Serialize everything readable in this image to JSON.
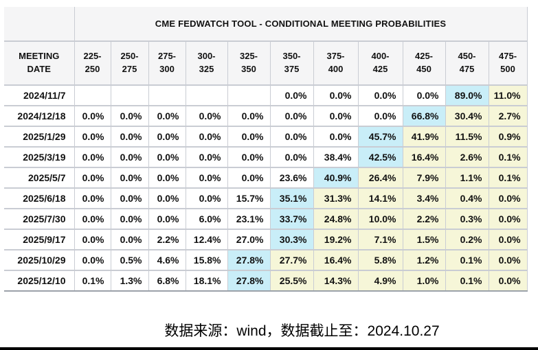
{
  "title": "CME FEDWATCH TOOL - CONDITIONAL MEETING PROBABILITIES",
  "footer": {
    "source_note": "数据来源：wind，数据截止至：2024.10.27"
  },
  "colors": {
    "highlight_blue": "#c9eef8",
    "highlight_yellow": "#f6f6d8",
    "grid_line": "#c9ccd3",
    "header_bg": "#f5f5f6",
    "bottom_bar": "#000000",
    "text": "#111111"
  },
  "chart_data": {
    "type": "table",
    "title": "CME FEDWATCH TOOL - CONDITIONAL MEETING PROBABILITIES",
    "columns": [
      "MEETING DATE",
      "225-250",
      "250-275",
      "275-300",
      "300-325",
      "325-350",
      "350-375",
      "375-400",
      "400-425",
      "425-450",
      "450-475",
      "475-500"
    ],
    "col_headers": [
      {
        "line1": "MEETING",
        "line2": "DATE"
      },
      {
        "line1": "225-",
        "line2": "250"
      },
      {
        "line1": "250-",
        "line2": "275"
      },
      {
        "line1": "275-",
        "line2": "300"
      },
      {
        "line1": "300-",
        "line2": "325"
      },
      {
        "line1": "325-",
        "line2": "350"
      },
      {
        "line1": "350-",
        "line2": "375"
      },
      {
        "line1": "375-",
        "line2": "400"
      },
      {
        "line1": "400-",
        "line2": "425"
      },
      {
        "line1": "425-",
        "line2": "450"
      },
      {
        "line1": "450-",
        "line2": "475"
      },
      {
        "line1": "475-",
        "line2": "500"
      }
    ],
    "rows": [
      {
        "date": "2024/11/7",
        "values": [
          "",
          "",
          "",
          "",
          "",
          "0.0%",
          "0.0%",
          "0.0%",
          "0.0%",
          "89.0%",
          "11.0%"
        ],
        "max_col_index": 9
      },
      {
        "date": "2024/12/18",
        "values": [
          "0.0%",
          "0.0%",
          "0.0%",
          "0.0%",
          "0.0%",
          "0.0%",
          "0.0%",
          "0.0%",
          "66.8%",
          "30.4%",
          "2.7%"
        ],
        "max_col_index": 8
      },
      {
        "date": "2025/1/29",
        "values": [
          "0.0%",
          "0.0%",
          "0.0%",
          "0.0%",
          "0.0%",
          "0.0%",
          "0.0%",
          "45.7%",
          "41.9%",
          "11.5%",
          "0.9%"
        ],
        "max_col_index": 7
      },
      {
        "date": "2025/3/19",
        "values": [
          "0.0%",
          "0.0%",
          "0.0%",
          "0.0%",
          "0.0%",
          "0.0%",
          "38.4%",
          "42.5%",
          "16.4%",
          "2.6%",
          "0.1%"
        ],
        "max_col_index": 7
      },
      {
        "date": "2025/5/7",
        "values": [
          "0.0%",
          "0.0%",
          "0.0%",
          "0.0%",
          "0.0%",
          "23.6%",
          "40.9%",
          "26.4%",
          "7.9%",
          "1.1%",
          "0.1%"
        ],
        "max_col_index": 6
      },
      {
        "date": "2025/6/18",
        "values": [
          "0.0%",
          "0.0%",
          "0.0%",
          "0.0%",
          "15.7%",
          "35.1%",
          "31.3%",
          "14.1%",
          "3.4%",
          "0.4%",
          "0.0%"
        ],
        "max_col_index": 5
      },
      {
        "date": "2025/7/30",
        "values": [
          "0.0%",
          "0.0%",
          "0.0%",
          "6.0%",
          "23.1%",
          "33.7%",
          "24.8%",
          "10.0%",
          "2.2%",
          "0.3%",
          "0.0%"
        ],
        "max_col_index": 5
      },
      {
        "date": "2025/9/17",
        "values": [
          "0.0%",
          "0.0%",
          "2.2%",
          "12.4%",
          "27.0%",
          "30.3%",
          "19.2%",
          "7.1%",
          "1.5%",
          "0.2%",
          "0.0%"
        ],
        "max_col_index": 5
      },
      {
        "date": "2025/10/29",
        "values": [
          "0.0%",
          "0.5%",
          "4.6%",
          "15.8%",
          "27.8%",
          "27.7%",
          "16.4%",
          "5.8%",
          "1.2%",
          "0.1%",
          "0.0%"
        ],
        "max_col_index": 4
      },
      {
        "date": "2025/12/10",
        "values": [
          "0.1%",
          "1.3%",
          "6.8%",
          "18.1%",
          "27.8%",
          "25.5%",
          "14.3%",
          "4.9%",
          "1.0%",
          "0.1%",
          "0.0%"
        ],
        "max_col_index": 4
      }
    ],
    "layout_hints": {
      "grid": true,
      "highlight_blue_cells": "cell at max_col_index per row",
      "highlight_yellow_cells": "cells right of max_col_index per row"
    }
  }
}
